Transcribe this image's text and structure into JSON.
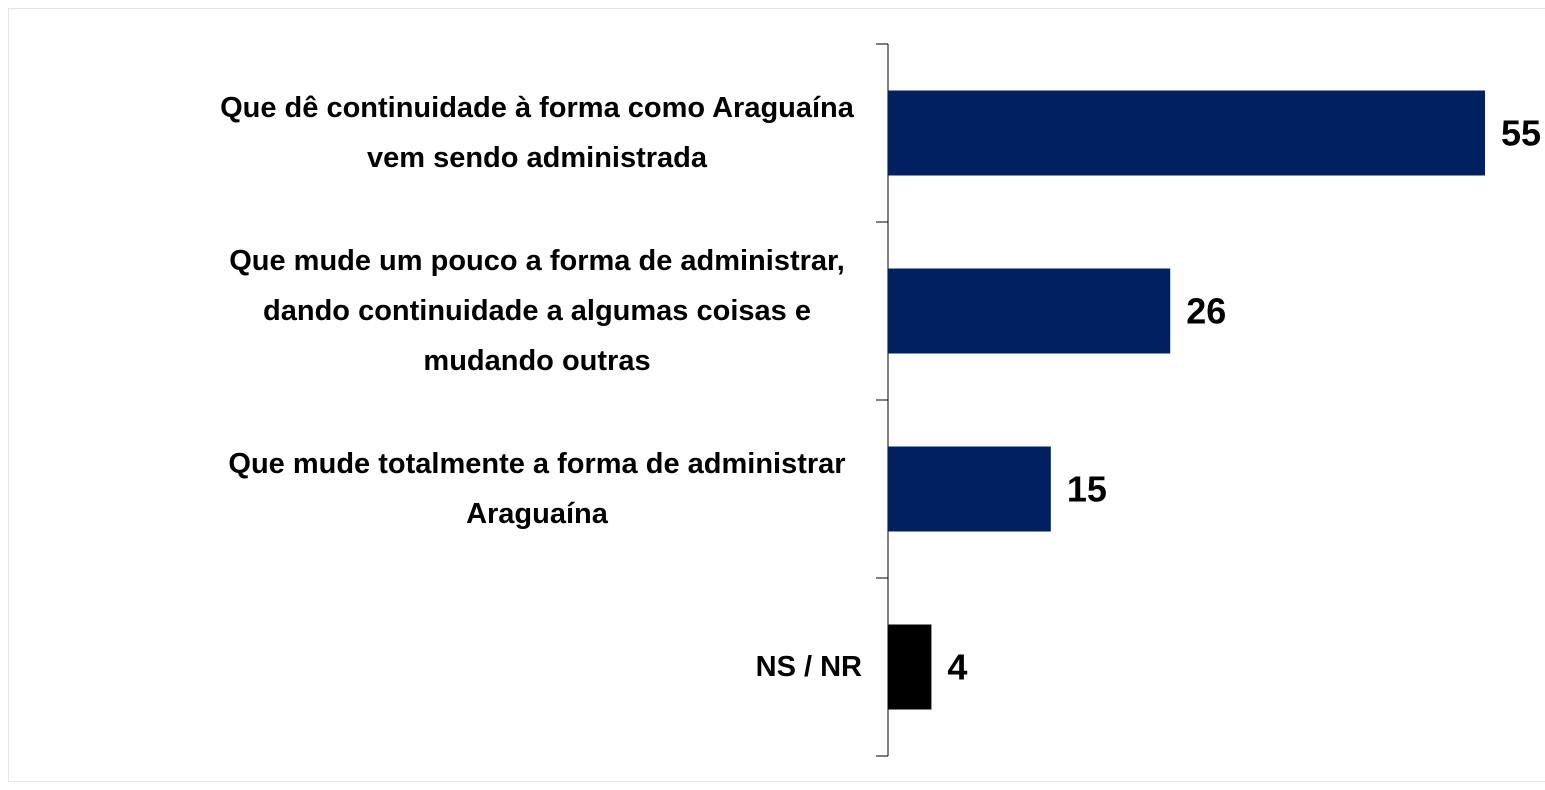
{
  "chart_data": {
    "type": "barh",
    "categories": [
      "Que dê continuidade à forma como Araguaína vem sendo administrada",
      "Que mude um pouco a forma de administrar, dando continuidade a algumas coisas e mudando outras",
      "Que mude totalmente a forma de administrar Araguaína",
      "NS / NR"
    ],
    "values": [
      55,
      26,
      15,
      4
    ],
    "colors": [
      "#002060",
      "#002060",
      "#002060",
      "#000000"
    ],
    "xlim": [
      0,
      55
    ]
  }
}
